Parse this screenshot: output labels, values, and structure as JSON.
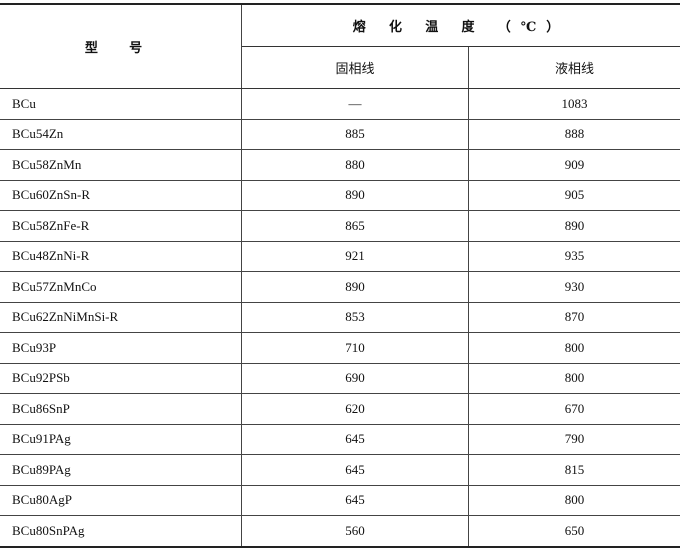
{
  "table": {
    "header": {
      "model": "型 号",
      "melting_temp": "熔 化 温 度 （℃）",
      "solidus": "固相线",
      "liquidus": "液相线"
    },
    "rows": [
      {
        "model": "BCu",
        "solidus": "—",
        "liquidus": "1083"
      },
      {
        "model": "BCu54Zn",
        "solidus": "885",
        "liquidus": "888"
      },
      {
        "model": "BCu58ZnMn",
        "solidus": "880",
        "liquidus": "909"
      },
      {
        "model": "BCu60ZnSn-R",
        "solidus": "890",
        "liquidus": "905"
      },
      {
        "model": "BCu58ZnFe-R",
        "solidus": "865",
        "liquidus": "890"
      },
      {
        "model": "BCu48ZnNi-R",
        "solidus": "921",
        "liquidus": "935"
      },
      {
        "model": "BCu57ZnMnCo",
        "solidus": "890",
        "liquidus": "930"
      },
      {
        "model": "BCu62ZnNiMnSi-R",
        "solidus": "853",
        "liquidus": "870"
      },
      {
        "model": "BCu93P",
        "solidus": "710",
        "liquidus": "800"
      },
      {
        "model": "BCu92PSb",
        "solidus": "690",
        "liquidus": "800"
      },
      {
        "model": "BCu86SnP",
        "solidus": "620",
        "liquidus": "670"
      },
      {
        "model": "BCu91PAg",
        "solidus": "645",
        "liquidus": "790"
      },
      {
        "model": "BCu89PAg",
        "solidus": "645",
        "liquidus": "815"
      },
      {
        "model": "BCu80AgP",
        "solidus": "645",
        "liquidus": "800"
      },
      {
        "model": "BCu80SnPAg",
        "solidus": "560",
        "liquidus": "650"
      }
    ]
  }
}
